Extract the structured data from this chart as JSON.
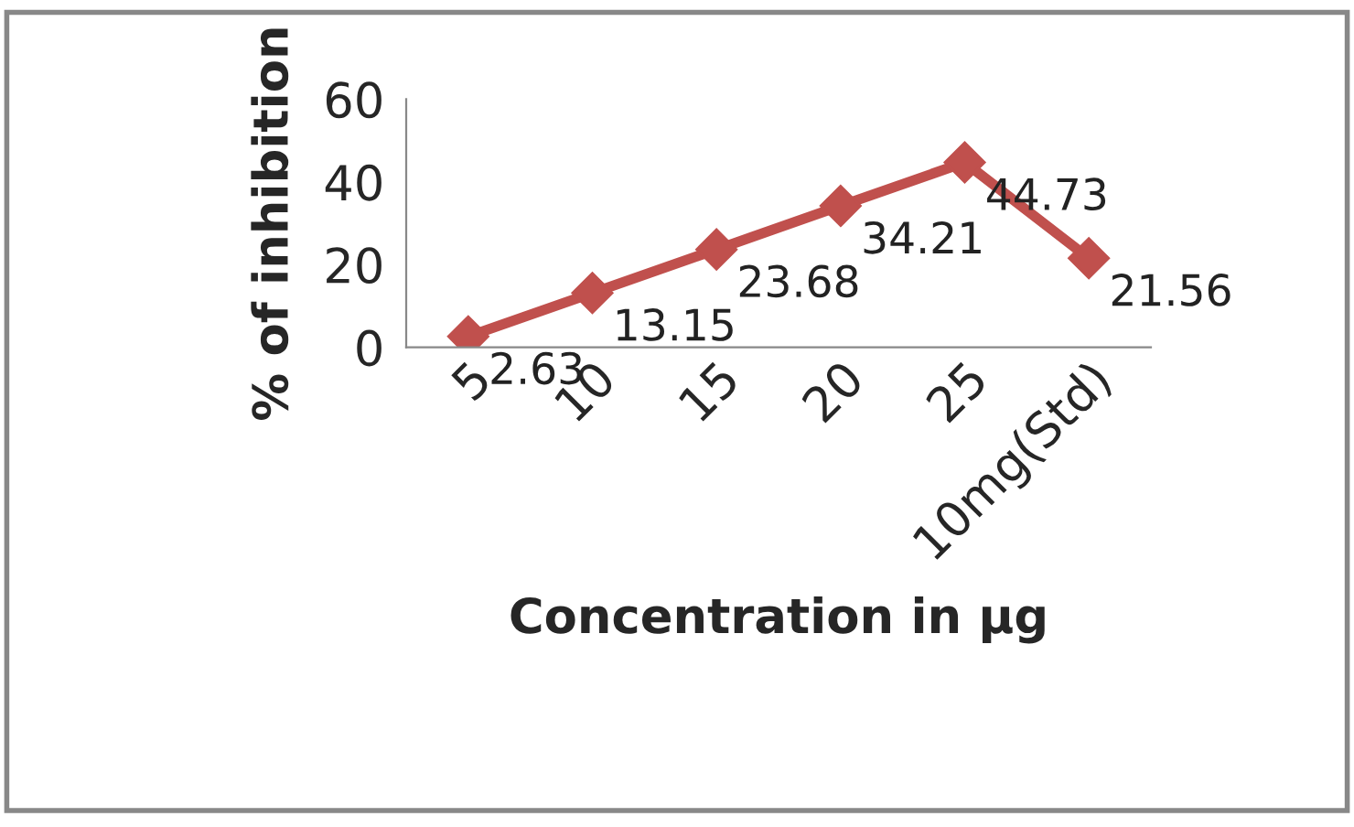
{
  "chart_data": {
    "type": "line",
    "xlabel": "Concentration in µg",
    "ylabel": "% of inhibition",
    "categories": [
      "5",
      "10",
      "15",
      "20",
      "25",
      "10mg(Std)"
    ],
    "series": [
      {
        "color": "#c0504d",
        "values": [
          2.63,
          13.15,
          23.68,
          34.21,
          44.73,
          21.56
        ]
      }
    ],
    "ylim": [
      0,
      60
    ],
    "yticks": [
      0,
      20,
      40,
      60
    ],
    "marker": "diamond",
    "line_style": "solid",
    "data_labels": true,
    "grid": false,
    "legend": false
  }
}
